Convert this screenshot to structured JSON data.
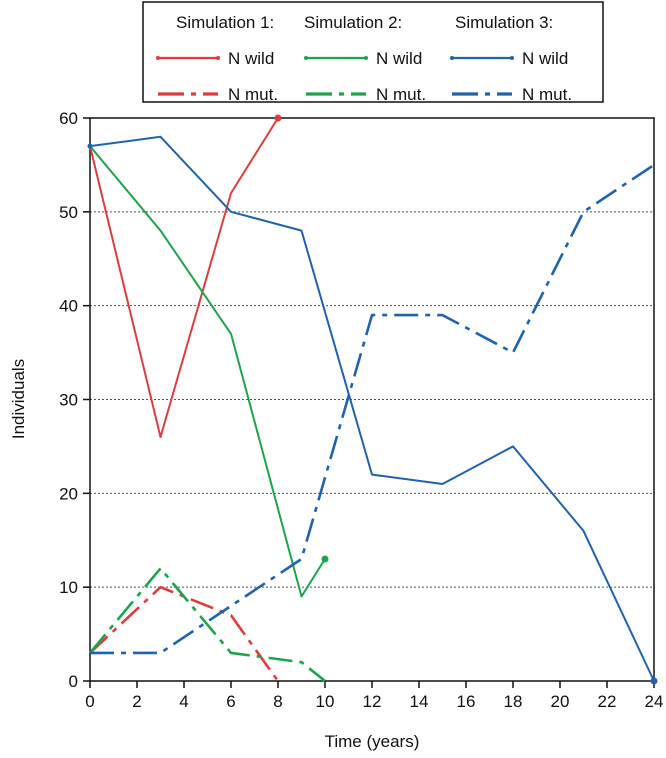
{
  "chart_data": {
    "type": "line",
    "xlabel": "Time (years)",
    "ylabel": "Individuals",
    "xlim": [
      0,
      24
    ],
    "ylim": [
      0,
      60
    ],
    "xticks": [
      0,
      2,
      4,
      6,
      8,
      10,
      12,
      14,
      16,
      18,
      20,
      22,
      24
    ],
    "yticks": [
      0,
      10,
      20,
      30,
      40,
      50,
      60
    ],
    "grid": "horizontal dotted",
    "legend_placement": "top-center, above plot",
    "legend": {
      "group_titles": [
        "Simulation 1:",
        "Simulation 2:",
        "Simulation 3:"
      ],
      "wild_label": "N wild",
      "mut_label": "N mut."
    },
    "series": [
      {
        "name": "N wild",
        "simulation": "Simulation 1:",
        "color": "#e03c3c",
        "style": "solid",
        "x": [
          0,
          3,
          6,
          8
        ],
        "y": [
          57,
          26,
          52,
          60
        ]
      },
      {
        "name": "N mut.",
        "simulation": "Simulation 1:",
        "color": "#e03c3c",
        "style": "dashdot",
        "x": [
          0,
          3,
          6,
          8
        ],
        "y": [
          3,
          10,
          7,
          0
        ]
      },
      {
        "name": "N wild",
        "simulation": "Simulation 2:",
        "color": "#1aa64a",
        "style": "solid",
        "x": [
          0,
          3,
          6,
          9,
          10
        ],
        "y": [
          57,
          48,
          37,
          9,
          13
        ]
      },
      {
        "name": "N mut.",
        "simulation": "Simulation 2:",
        "color": "#1aa64a",
        "style": "dashdot",
        "x": [
          0,
          3,
          6,
          9,
          10
        ],
        "y": [
          3,
          12,
          3,
          2,
          0
        ]
      },
      {
        "name": "N wild",
        "simulation": "Simulation 3:",
        "color": "#1f63b0",
        "style": "solid",
        "x": [
          0,
          3,
          6,
          9,
          12,
          15,
          18,
          21,
          24
        ],
        "y": [
          57,
          58,
          50,
          48,
          22,
          21,
          25,
          16,
          0
        ]
      },
      {
        "name": "N mut.",
        "simulation": "Simulation 3:",
        "color": "#1f63b0",
        "style": "dashdot",
        "x": [
          0,
          3,
          6,
          9,
          12,
          15,
          18,
          21,
          24
        ],
        "y": [
          3,
          3,
          8,
          13,
          39,
          39,
          35,
          50,
          55
        ]
      }
    ]
  }
}
